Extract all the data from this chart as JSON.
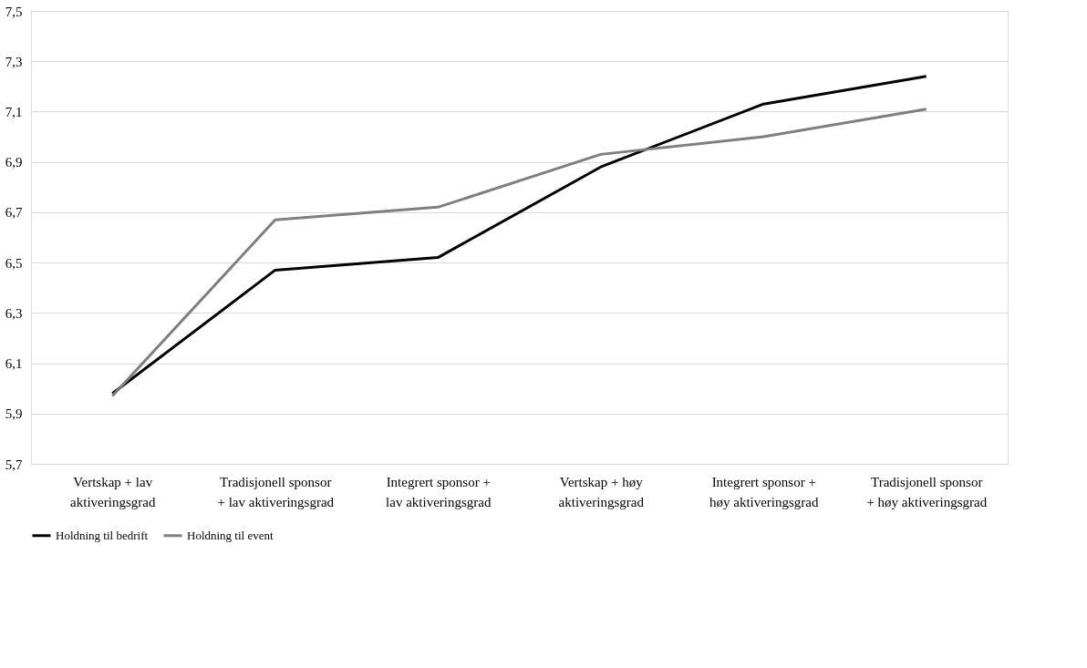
{
  "chart_data": {
    "type": "line",
    "categories": [
      "Vertskap + lav aktiveringsgrad",
      "Tradisjonell sponsor + lav aktiveringsgrad",
      "Integrert sponsor + lav aktiveringsgrad",
      "Vertskap + høy aktiveringsgrad",
      "Integrert sponsor + høy aktiveringsgrad",
      "Tradisjonell sponsor + høy aktiveringsgrad"
    ],
    "series": [
      {
        "name": "Holdning til bedrift",
        "color": "#000000",
        "values": [
          5.98,
          6.47,
          6.52,
          6.88,
          7.13,
          7.24
        ]
      },
      {
        "name": "Holdning til event",
        "color": "#7f7f7f",
        "values": [
          5.97,
          6.67,
          6.72,
          6.93,
          7.0,
          7.11
        ]
      }
    ],
    "ylim": [
      5.7,
      7.5
    ],
    "yticks": [
      {
        "value": 5.7,
        "label": "5,7"
      },
      {
        "value": 5.9,
        "label": "5,9"
      },
      {
        "value": 6.1,
        "label": "6,1"
      },
      {
        "value": 6.3,
        "label": "6,3"
      },
      {
        "value": 6.5,
        "label": "6,5"
      },
      {
        "value": 6.7,
        "label": "6,7"
      },
      {
        "value": 6.9,
        "label": "6,9"
      },
      {
        "value": 7.1,
        "label": "7,1"
      },
      {
        "value": 7.3,
        "label": "7,3"
      },
      {
        "value": 7.5,
        "label": "7,5"
      }
    ],
    "grid": "y",
    "legend": "bottom",
    "marker": "none",
    "line_style": "solid"
  }
}
